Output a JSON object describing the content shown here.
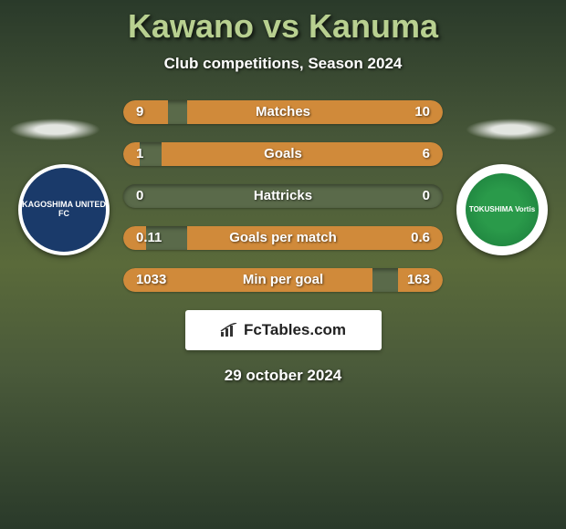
{
  "title": "Kawano vs Kanuma",
  "subtitle": "Club competitions, Season 2024",
  "date": "29 october 2024",
  "branding": "FcTables.com",
  "colors": {
    "bar_fill": "#d08a3a",
    "bar_bg": "#5a6a4a",
    "logo_left_bg": "#1a3a6a",
    "logo_right_bg": "#2a9a4a"
  },
  "logos": {
    "left": {
      "label": "KAGOSHIMA UNITED FC"
    },
    "right": {
      "label": "TOKUSHIMA Vortis"
    }
  },
  "stats": [
    {
      "label": "Matches",
      "left_val": "9",
      "right_val": "10",
      "left_pct": 14,
      "right_pct": 80
    },
    {
      "label": "Goals",
      "left_val": "1",
      "right_val": "6",
      "left_pct": 5,
      "right_pct": 88
    },
    {
      "label": "Hattricks",
      "left_val": "0",
      "right_val": "0",
      "left_pct": 0,
      "right_pct": 0
    },
    {
      "label": "Goals per match",
      "left_val": "0.11",
      "right_val": "0.6",
      "left_pct": 7,
      "right_pct": 80
    },
    {
      "label": "Min per goal",
      "left_val": "1033",
      "right_val": "163",
      "left_pct": 78,
      "right_pct": 14
    }
  ]
}
